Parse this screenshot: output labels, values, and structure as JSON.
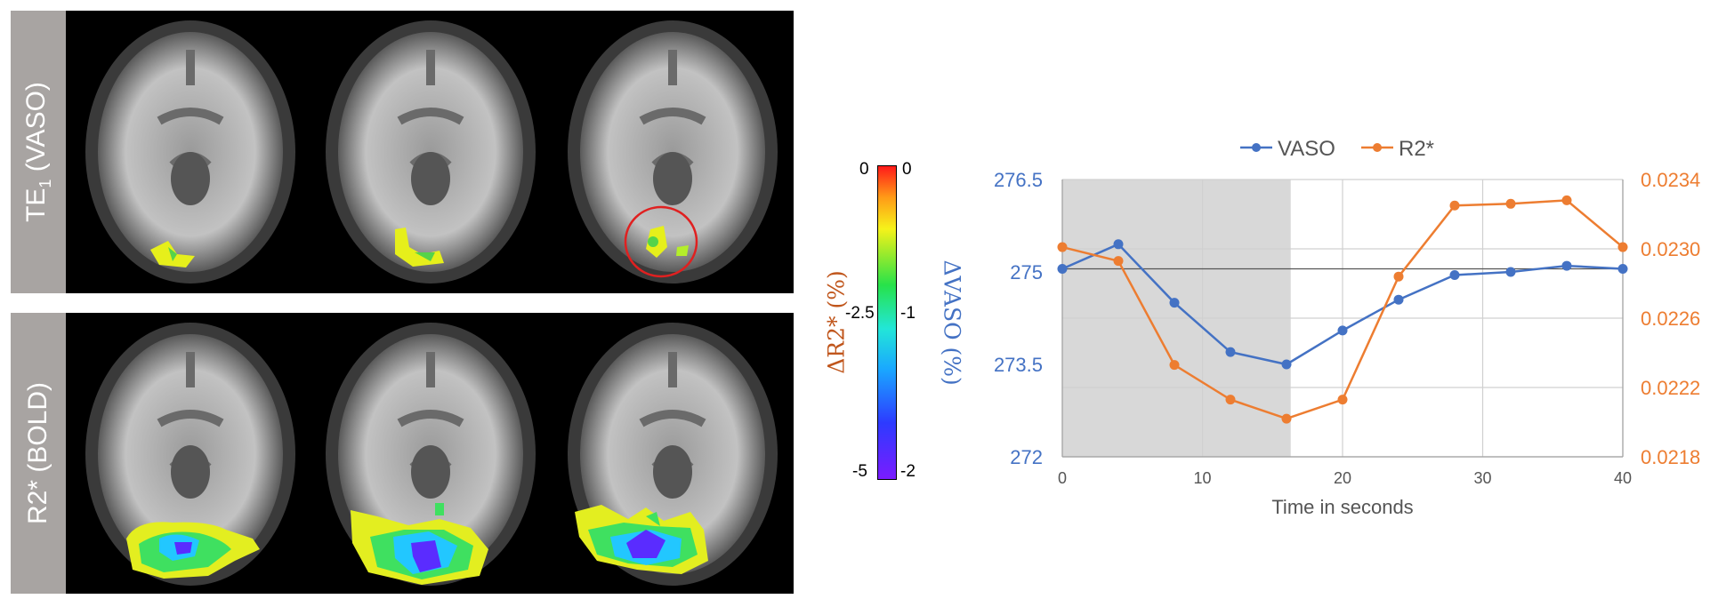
{
  "panels": {
    "top_label_main": "TE",
    "top_label_sub": "1",
    "top_label_rest": " (VASO)",
    "bottom_label": "R2* (BOLD)"
  },
  "colorbar": {
    "left_ticks": [
      "0",
      "-2.5",
      "-5"
    ],
    "right_ticks": [
      "0",
      "-1",
      "-2"
    ],
    "left_label": "ΔR2* (%)",
    "right_label": "ΔVASO (%)",
    "colors": {
      "left_label": "#c0561c",
      "right_label": "#4472c4"
    }
  },
  "chart_data": {
    "type": "line",
    "xlabel": "Time in seconds",
    "x": [
      0,
      4,
      8,
      12,
      16,
      20,
      24,
      28,
      32,
      36,
      40
    ],
    "x_ticks": [
      "0",
      "10",
      "20",
      "30",
      "40"
    ],
    "xlim": [
      0,
      40
    ],
    "y_left_ticks": [
      "276.5",
      "275",
      "273.5",
      "272"
    ],
    "ylim_left": [
      272,
      276.5
    ],
    "y_right_ticks": [
      "0.0234",
      "0.0230",
      "0.0226",
      "0.0222",
      "0.0218"
    ],
    "ylim_right": [
      0.0218,
      0.0234
    ],
    "shaded_x_range": [
      0,
      16.3
    ],
    "baseline_left": 275.05,
    "grid": true,
    "legend_position": "top",
    "series": [
      {
        "name": "VASO",
        "axis": "left",
        "color": "#4472c4",
        "values": [
          275.05,
          275.45,
          274.5,
          273.7,
          273.5,
          274.05,
          274.55,
          274.95,
          275.0,
          275.1,
          275.05
        ]
      },
      {
        "name": "R2*",
        "axis": "right",
        "color": "#ed7d31",
        "values": [
          0.02301,
          0.02293,
          0.02233,
          0.02213,
          0.02202,
          0.02213,
          0.02284,
          0.02325,
          0.02326,
          0.02328,
          0.02301
        ]
      }
    ]
  }
}
